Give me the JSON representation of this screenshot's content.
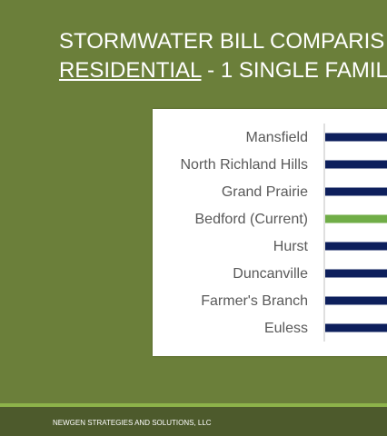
{
  "slide": {
    "title_line1": "STORMWATER BILL COMPARIS",
    "title_line2_strong": "RESIDENTIAL",
    "title_line2_rest": " - 1 SINGLE FAMIL",
    "footer": "NEWGEN STRATEGIES AND SOLUTIONS, LLC"
  },
  "colors": {
    "background": "#6b7f3a",
    "bar": "#0d1f5c",
    "highlight_bar": "#70ad47",
    "footer": "#4d5a2c",
    "footer_stripe": "#8db34a"
  },
  "chart_data": {
    "type": "bar",
    "orientation": "horizontal",
    "categories": [
      "Mansfield",
      "North Richland Hills",
      "Grand Prairie",
      "Bedford (Current)",
      "Hurst",
      "Duncanville",
      "Farmer's Branch",
      "Euless"
    ],
    "highlight": "Bedford (Current)",
    "values": [
      null,
      null,
      null,
      null,
      null,
      null,
      null,
      null
    ],
    "title": "",
    "xlabel": "",
    "ylabel": "",
    "note": "bar lengths cropped at right edge of image"
  }
}
